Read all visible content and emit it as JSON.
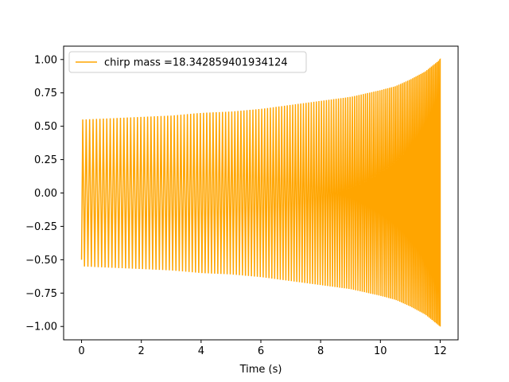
{
  "chart_data": {
    "type": "line",
    "title": "",
    "xlabel": "Time (s)",
    "ylabel": "",
    "xlim": [
      -0.6,
      12.6
    ],
    "ylim": [
      -1.1,
      1.1
    ],
    "xticks": [
      0,
      2,
      4,
      6,
      8,
      10,
      12
    ],
    "yticks": [
      -1.0,
      -0.75,
      -0.5,
      -0.25,
      0.0,
      0.25,
      0.5,
      0.75,
      1.0
    ],
    "xtick_labels": [
      "0",
      "2",
      "4",
      "6",
      "8",
      "10",
      "12"
    ],
    "ytick_labels": [
      "−1.00",
      "−0.75",
      "−0.50",
      "−0.25",
      "0.00",
      "0.25",
      "0.50",
      "0.75",
      "1.00"
    ],
    "grid": false,
    "legend_position": "upper-left",
    "series": [
      {
        "name": "chirp mass =18.342859401934124",
        "color": "#ffa500",
        "envelope": {
          "x": [
            0,
            1,
            2,
            3,
            4,
            5,
            6,
            7,
            8,
            9,
            10,
            10.5,
            11,
            11.5,
            12
          ],
          "amplitude": [
            0.55,
            0.56,
            0.57,
            0.58,
            0.6,
            0.61,
            0.63,
            0.66,
            0.69,
            0.72,
            0.77,
            0.8,
            0.85,
            0.91,
            1.0
          ]
        },
        "start": {
          "x": 0,
          "y": -0.5
        },
        "end": {
          "x": 12,
          "y": -0.83
        }
      }
    ]
  }
}
